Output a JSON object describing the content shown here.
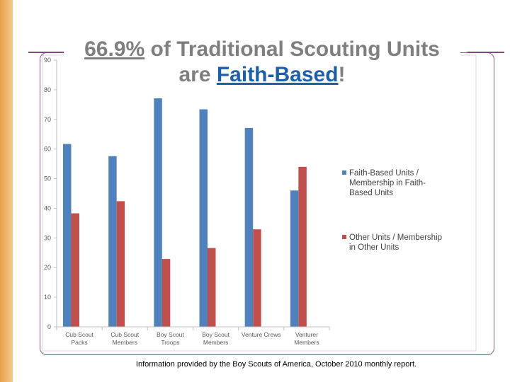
{
  "title": {
    "pct": "66.9%",
    "part1": " of Traditional Scouting Units",
    "part2": "are ",
    "fb": "Faith-Based",
    "excl": "!"
  },
  "footnote": "Information provided by the Boy Scouts of America, October 2010 monthly report.",
  "colors": {
    "faith": "#4f81bd",
    "other": "#c0504d",
    "accent": "#7a4a78"
  },
  "chart_data": {
    "type": "bar",
    "categories": [
      [
        "Cub Scout",
        "Packs"
      ],
      [
        "Cub Scout",
        "Members"
      ],
      [
        "Boy Scout",
        "Troops"
      ],
      [
        "Boy Scout",
        "Members"
      ],
      [
        "Venture Crews"
      ],
      [
        "Venturer",
        "Members"
      ]
    ],
    "series": [
      {
        "name": [
          "Faith-Based Units /",
          "Membership in Faith-",
          "Based Units"
        ],
        "values": [
          61.7,
          57.6,
          77.1,
          73.4,
          67.1,
          46.0
        ]
      },
      {
        "name": [
          "Other Units / Membership",
          "in Other Units"
        ],
        "values": [
          38.3,
          42.4,
          22.9,
          26.6,
          32.9,
          54.0
        ]
      }
    ],
    "yticks": [
      0,
      10,
      20,
      30,
      40,
      50,
      60,
      70,
      80,
      90
    ],
    "ylim": [
      0,
      90
    ],
    "legend": "right",
    "grid": false
  }
}
